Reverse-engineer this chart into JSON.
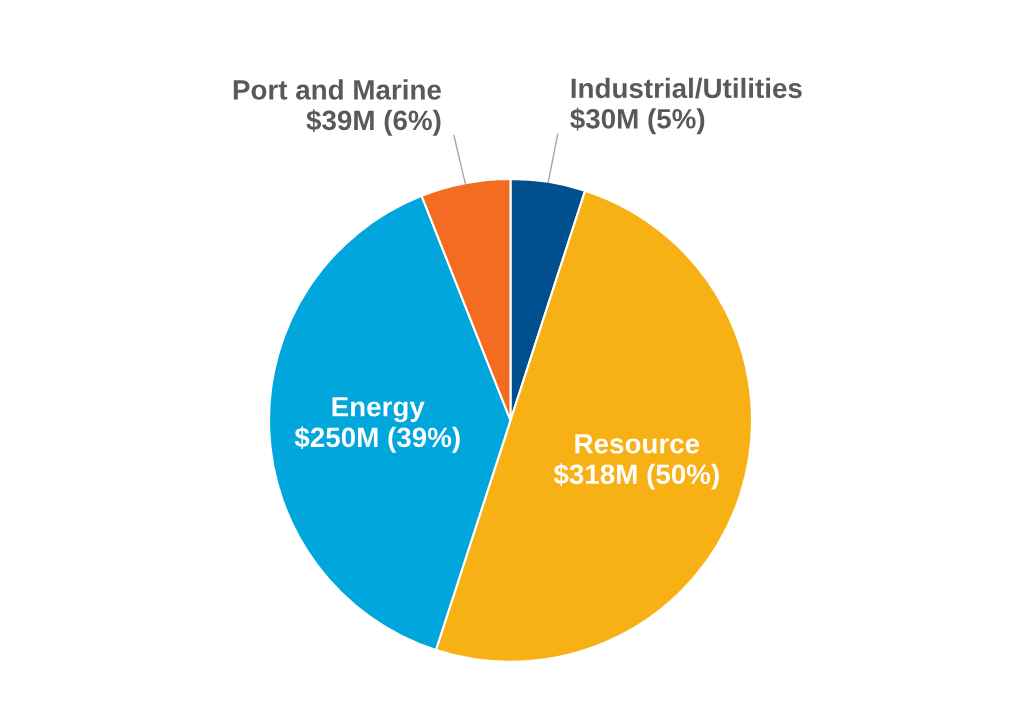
{
  "chart_data": {
    "type": "pie",
    "categories": [
      "Industrial/Utilities",
      "Resource",
      "Energy",
      "Port and Marine"
    ],
    "values": [
      5,
      50,
      39,
      6
    ],
    "value_labels": [
      "$30M (5%)",
      "$318M (50%)",
      "$250M (39%)",
      "$39M (6%)"
    ],
    "colors": [
      "#004f8f",
      "#f8b114",
      "#00a6dc",
      "#f36c21"
    ],
    "legend": false
  }
}
